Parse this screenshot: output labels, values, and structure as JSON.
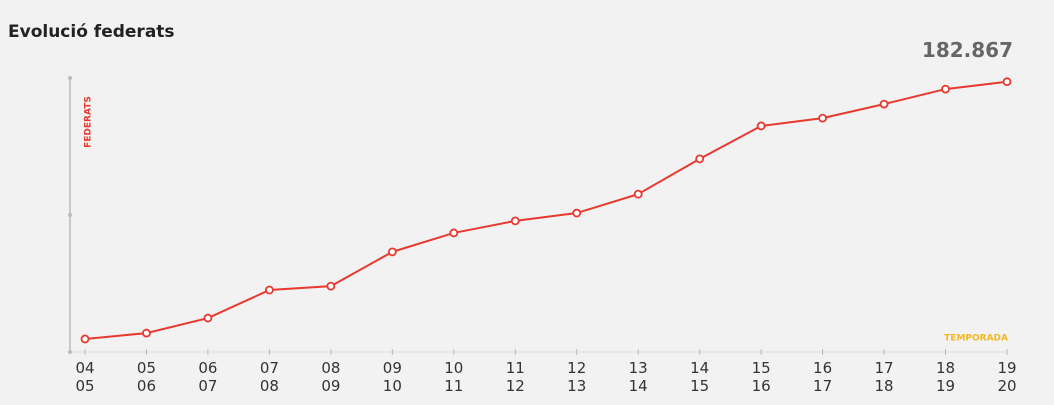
{
  "chart_data": {
    "type": "line",
    "title": "Evolució federats",
    "y_label": "FEDERATS",
    "x_label": "TEMPORADA",
    "categories": [
      [
        "04",
        "05"
      ],
      [
        "05",
        "06"
      ],
      [
        "06",
        "07"
      ],
      [
        "07",
        "08"
      ],
      [
        "08",
        "09"
      ],
      [
        "09",
        "10"
      ],
      [
        "10",
        "11"
      ],
      [
        "11",
        "12"
      ],
      [
        "12",
        "13"
      ],
      [
        "13",
        "14"
      ],
      [
        "14",
        "15"
      ],
      [
        "15",
        "16"
      ],
      [
        "16",
        "17"
      ],
      [
        "17",
        "18"
      ],
      [
        "18",
        "19"
      ],
      [
        "19",
        "20"
      ]
    ],
    "series": [
      {
        "name": "federats",
        "color": "#e8392f",
        "values": [
          104000,
          105800,
          110400,
          119000,
          120200,
          130700,
          136500,
          140200,
          142600,
          148400,
          159200,
          169300,
          171700,
          176000,
          180600,
          182867
        ],
        "value_labels": [
          null,
          null,
          null,
          null,
          null,
          null,
          null,
          null,
          null,
          null,
          null,
          null,
          null,
          null,
          null,
          "182.867"
        ]
      }
    ],
    "ylim": [
      100000,
      184000
    ],
    "y_label_color": "#e8392f",
    "x_label_color": "#f5b820"
  }
}
